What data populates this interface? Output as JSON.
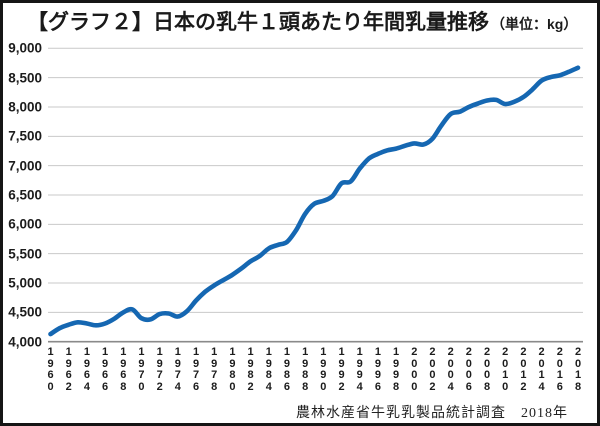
{
  "header": {
    "title": "【グラフ２】日本の乳牛１頭あたり年間乳量推移",
    "unit": "（単位：kg）"
  },
  "footer": {
    "source": "農林水産省牛乳乳製品統計調査　2018年"
  },
  "colors": {
    "line": "#1567b2",
    "grid": "#c9c9c9",
    "axis": "#8a8a8a",
    "border": "#151515"
  },
  "chart_data": {
    "type": "line",
    "title": "日本の乳牛１頭あたり年間乳量推移",
    "unit": "kg",
    "ylim": [
      4000,
      9000
    ],
    "grid": "horizontal-only",
    "legend": "none",
    "x": [
      1960,
      1961,
      1962,
      1963,
      1964,
      1965,
      1966,
      1967,
      1968,
      1969,
      1970,
      1971,
      1972,
      1973,
      1974,
      1975,
      1976,
      1977,
      1978,
      1979,
      1980,
      1981,
      1982,
      1983,
      1984,
      1985,
      1986,
      1987,
      1988,
      1989,
      1990,
      1991,
      1992,
      1993,
      1994,
      1995,
      1996,
      1997,
      1998,
      1999,
      2000,
      2001,
      2002,
      2003,
      2004,
      2005,
      2006,
      2007,
      2008,
      2009,
      2010,
      2011,
      2012,
      2013,
      2014,
      2015,
      2016,
      2017,
      2018
    ],
    "values": [
      4130,
      4230,
      4290,
      4330,
      4310,
      4280,
      4310,
      4390,
      4500,
      4550,
      4400,
      4380,
      4470,
      4480,
      4430,
      4520,
      4700,
      4850,
      4960,
      5050,
      5140,
      5250,
      5370,
      5460,
      5590,
      5650,
      5700,
      5900,
      6180,
      6350,
      6400,
      6480,
      6700,
      6730,
      6950,
      7120,
      7200,
      7260,
      7290,
      7340,
      7380,
      7360,
      7460,
      7690,
      7880,
      7920,
      8000,
      8060,
      8110,
      8120,
      8050,
      8090,
      8170,
      8300,
      8450,
      8510,
      8540,
      8600,
      8670
    ],
    "x_tick_labels": [
      "1960",
      "1962",
      "1964",
      "1966",
      "1968",
      "1970",
      "1972",
      "1974",
      "1976",
      "1978",
      "1980",
      "1982",
      "1984",
      "1986",
      "1988",
      "1990",
      "1992",
      "1994",
      "1996",
      "1998",
      "2000",
      "2002",
      "2004",
      "2006",
      "2008",
      "2010",
      "2012",
      "2014",
      "2016",
      "2018"
    ],
    "y_tick_labels": [
      "4,000",
      "4,500",
      "5,000",
      "5,500",
      "6,000",
      "6,500",
      "7,000",
      "7,500",
      "8,000",
      "8,500",
      "9,000"
    ]
  }
}
